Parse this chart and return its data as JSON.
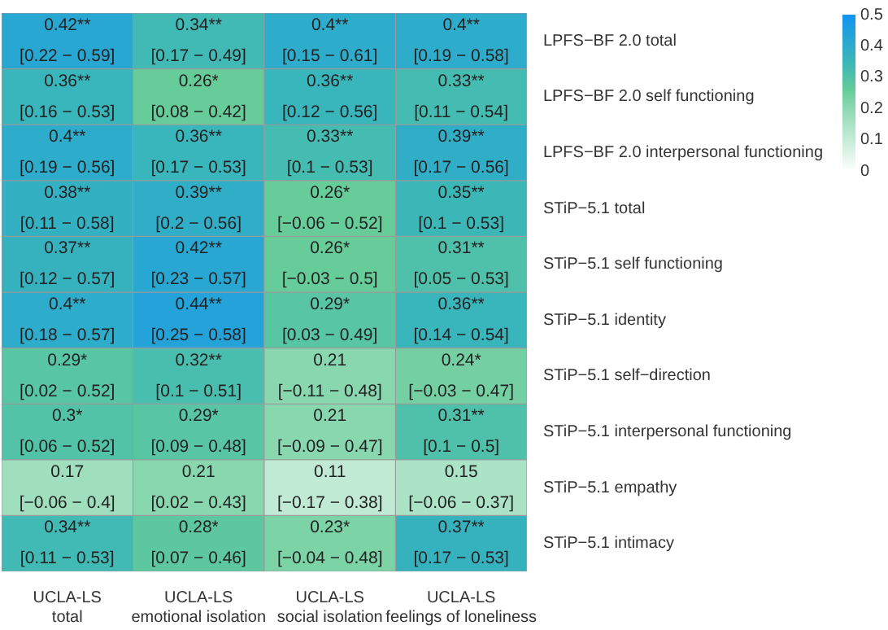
{
  "chart_data": {
    "type": "heatmap",
    "categories": [
      "UCLA-LS\ntotal",
      "UCLA-LS\nemotional isolation",
      "UCLA-LS\nsocial isolation",
      "UCLA-LS\nfeelings of loneliness"
    ],
    "y_categories": [
      "LPFS−BF 2.0 total",
      "LPFS−BF 2.0 self functioning",
      "LPFS−BF 2.0 interpersonal functioning",
      "STiP−5.1 total",
      "STiP−5.1 self functioning",
      "STiP−5.1 identity",
      "STiP−5.1 self−direction",
      "STiP−5.1 interpersonal functioning",
      "STiP−5.1 empathy",
      "STiP−5.1 intimacy"
    ],
    "cells": [
      [
        0.42,
        0.34,
        0.4,
        0.4
      ],
      [
        0.36,
        0.26,
        0.36,
        0.33
      ],
      [
        0.4,
        0.36,
        0.33,
        0.39
      ],
      [
        0.38,
        0.39,
        0.26,
        0.35
      ],
      [
        0.37,
        0.42,
        0.26,
        0.31
      ],
      [
        0.4,
        0.44,
        0.29,
        0.36
      ],
      [
        0.29,
        0.32,
        0.21,
        0.24
      ],
      [
        0.3,
        0.29,
        0.21,
        0.31
      ],
      [
        0.17,
        0.21,
        0.11,
        0.15
      ],
      [
        0.34,
        0.28,
        0.23,
        0.37
      ]
    ],
    "cell_labels": [
      [
        "0.42**\n[0.22 − 0.59]",
        "0.34**\n[0.17 − 0.49]",
        "0.4**\n[0.15 − 0.61]",
        "0.4**\n[0.19 − 0.58]"
      ],
      [
        "0.36**\n[0.16 − 0.53]",
        "0.26*\n[0.08 − 0.42]",
        "0.36**\n[0.12 − 0.56]",
        "0.33**\n[0.11 − 0.54]"
      ],
      [
        "0.4**\n[0.19 − 0.56]",
        "0.36**\n[0.17 − 0.53]",
        "0.33**\n[0.1 − 0.53]",
        "0.39**\n[0.17 − 0.56]"
      ],
      [
        "0.38**\n[0.11 − 0.58]",
        "0.39**\n[0.2 − 0.56]",
        "0.26*\n[−0.06 − 0.52]",
        "0.35**\n[0.1 − 0.53]"
      ],
      [
        "0.37**\n[0.12 − 0.57]",
        "0.42**\n[0.23 − 0.57]",
        "0.26*\n[−0.03 − 0.5]",
        "0.31**\n[0.05 − 0.53]"
      ],
      [
        "0.4**\n[0.18 − 0.57]",
        "0.44**\n[0.25 − 0.58]",
        "0.29*\n[0.03 − 0.49]",
        "0.36**\n[0.14 − 0.54]"
      ],
      [
        "0.29*\n[0.02 − 0.52]",
        "0.32**\n[0.1 − 0.51]",
        "0.21\n[−0.11 − 0.48]",
        "0.24*\n[−0.03 − 0.47]"
      ],
      [
        "0.3*\n[0.06 − 0.52]",
        "0.29*\n[0.09 − 0.48]",
        "0.21\n[−0.09 − 0.47]",
        "0.31**\n[0.1 − 0.5]"
      ],
      [
        "0.17\n[−0.06 − 0.4]",
        "0.21\n[0.02 − 0.43]",
        "0.11\n[−0.17 − 0.38]",
        "0.15\n[−0.06 − 0.37]"
      ],
      [
        "0.34**\n[0.11 − 0.53]",
        "0.28*\n[0.07 − 0.46]",
        "0.23*\n[−0.04 − 0.48]",
        "0.37**\n[0.17 − 0.53]"
      ]
    ],
    "clim": [
      0,
      0.5
    ],
    "cticks": [
      0,
      0.1,
      0.2,
      0.3,
      0.4,
      0.5
    ]
  }
}
